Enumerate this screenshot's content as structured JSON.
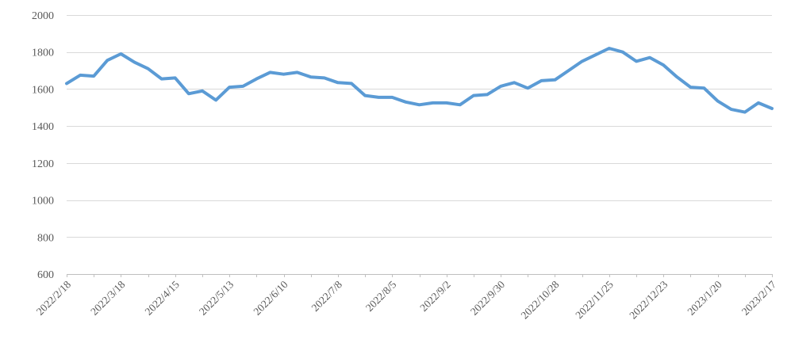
{
  "chart_data": {
    "type": "line",
    "title": "",
    "xlabel": "",
    "ylabel": "",
    "x_tick_labels": [
      "2022/2/18",
      "2022/3/18",
      "2022/4/15",
      "2022/5/13",
      "2022/6/10",
      "2022/7/8",
      "2022/8/5",
      "2022/9/2",
      "2022/9/30",
      "2022/10/28",
      "2022/11/25",
      "2022/12/23",
      "2023/1/20",
      "2023/2/17"
    ],
    "label_every_n_points": 4,
    "tick_every_n_points": 2,
    "values": [
      1630,
      1675,
      1670,
      1755,
      1790,
      1745,
      1710,
      1655,
      1660,
      1575,
      1590,
      1540,
      1610,
      1615,
      1655,
      1690,
      1680,
      1690,
      1665,
      1660,
      1635,
      1630,
      1565,
      1555,
      1555,
      1530,
      1515,
      1525,
      1525,
      1515,
      1565,
      1570,
      1615,
      1635,
      1605,
      1645,
      1650,
      1700,
      1750,
      1785,
      1820,
      1800,
      1750,
      1770,
      1730,
      1665,
      1610,
      1605,
      1535,
      1490,
      1475,
      1525,
      1495
    ],
    "y_ticks": [
      600,
      800,
      1000,
      1200,
      1400,
      1600,
      1800,
      2000
    ],
    "ylim": [
      600,
      2000
    ],
    "grid": "horizontal",
    "legend": "none",
    "colors": {
      "series_line": "#5B9BD5",
      "gridline": "#D9D9D9",
      "axis_line": "#BFBFBF",
      "tick_label": "#595959",
      "background": "#FFFFFF"
    }
  }
}
